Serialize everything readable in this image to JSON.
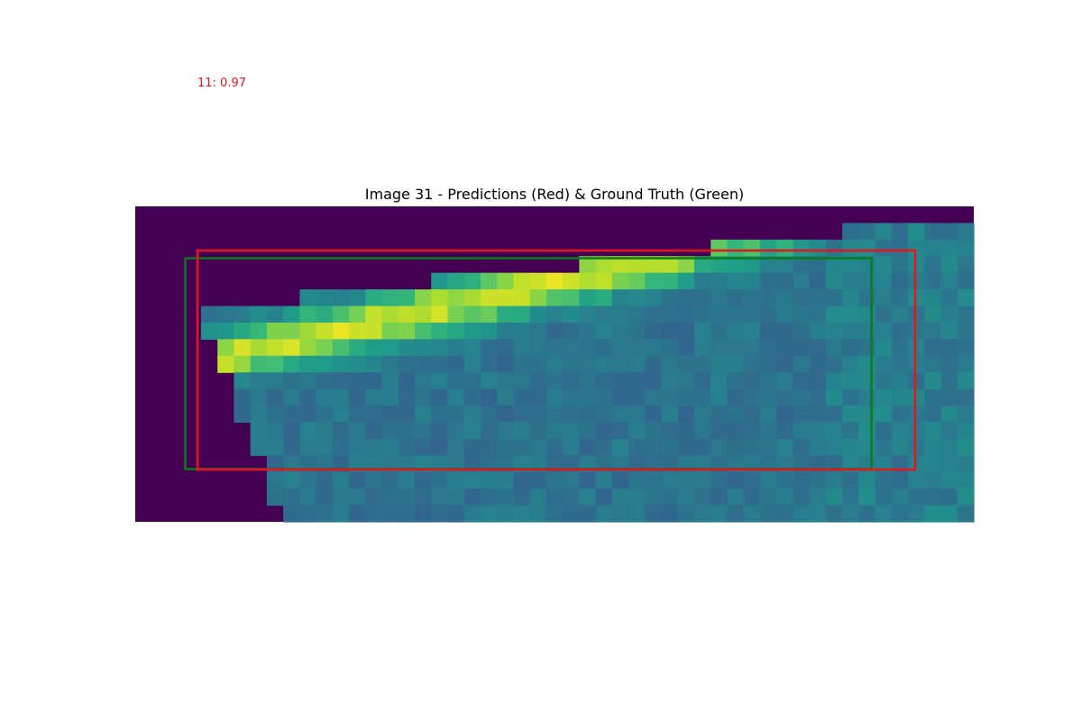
{
  "figure": {
    "title": "Image 31 - Predictions (Red) & Ground Truth (Green)",
    "prediction_label": "11: 0.97"
  },
  "colors": {
    "prediction_box": "#e8141c",
    "ground_truth_box": "#0a7d1a",
    "prediction_label": "#e8141c",
    "colormap": "viridis",
    "background_fill": "#440154"
  },
  "heatmap": {
    "note_rows": 19,
    "note_cols": 51
  }
}
